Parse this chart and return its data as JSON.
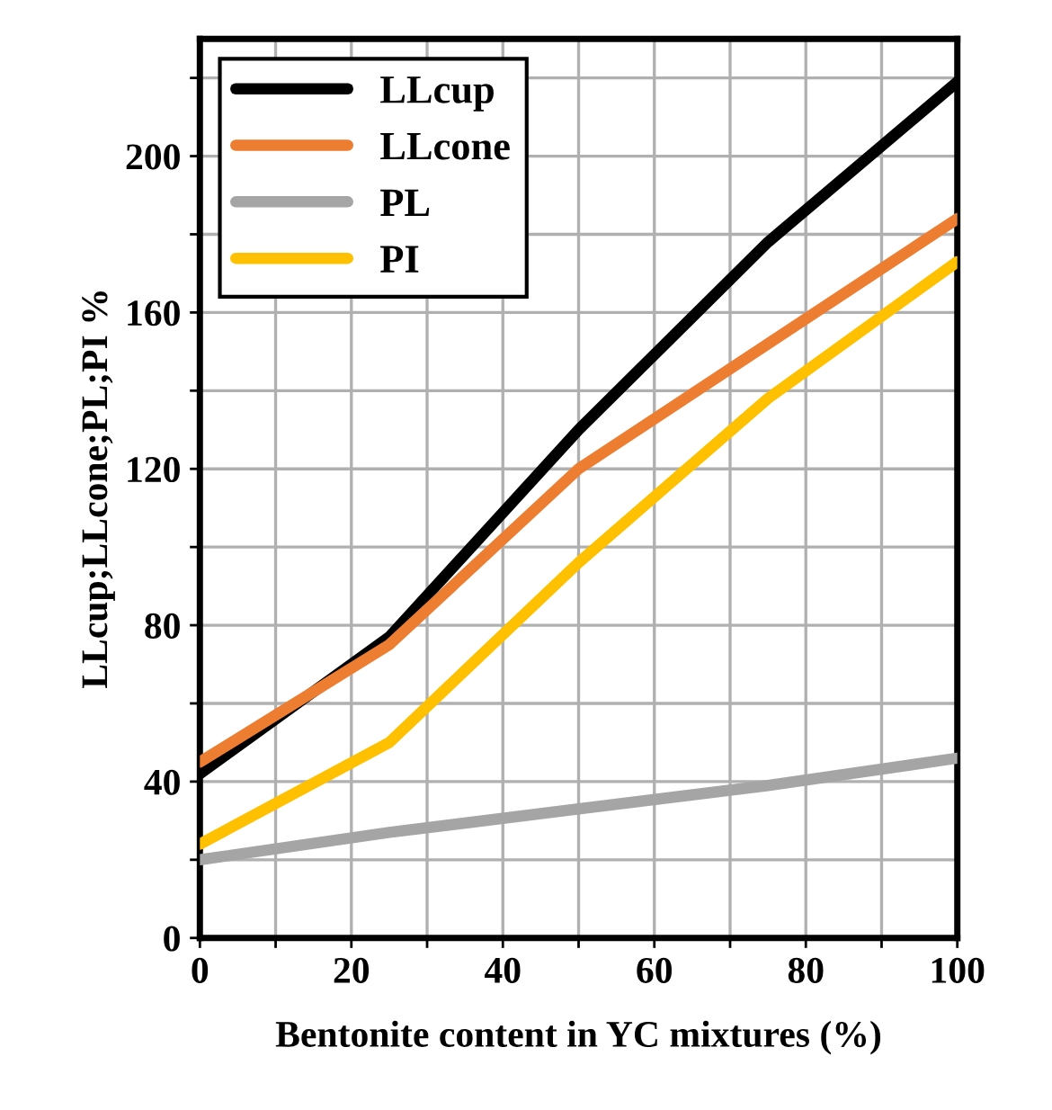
{
  "chart_data": {
    "type": "line",
    "xlabel": "Bentonite content in YC mixtures (%)",
    "ylabel": "LLcup;LLcone;PL;PI %",
    "x": [
      0,
      25,
      50,
      75,
      100
    ],
    "series": [
      {
        "name": "LLcup",
        "color": "#000000",
        "values": [
          42,
          77,
          130,
          178,
          219
        ]
      },
      {
        "name": "LLcone",
        "color": "#ed7d31",
        "values": [
          45,
          75,
          120,
          152,
          184
        ]
      },
      {
        "name": "PL",
        "color": "#a5a5a5",
        "values": [
          20,
          27,
          33,
          39,
          46
        ]
      },
      {
        "name": "PI",
        "color": "#ffc000",
        "values": [
          24,
          50,
          96,
          138,
          173
        ]
      }
    ],
    "xlim": [
      0,
      100
    ],
    "ylim": [
      0,
      230
    ],
    "xticks": [
      0,
      {
        "value": 10,
        "label": null
      },
      20,
      {
        "value": 30,
        "label": null
      },
      40,
      {
        "value": 50,
        "label": null
      },
      60,
      {
        "value": 70,
        "label": null
      },
      80,
      {
        "value": 90,
        "label": null
      },
      100
    ],
    "yticks": [
      0,
      {
        "value": 20,
        "label": null
      },
      40,
      {
        "value": 60,
        "label": null
      },
      80,
      {
        "value": 100,
        "label": null
      },
      120,
      {
        "value": 140,
        "label": null
      },
      160,
      {
        "value": 180,
        "label": null
      },
      200,
      {
        "value": 220,
        "label": null
      }
    ],
    "grid": true,
    "legend": "top left",
    "line_style": "solid"
  }
}
